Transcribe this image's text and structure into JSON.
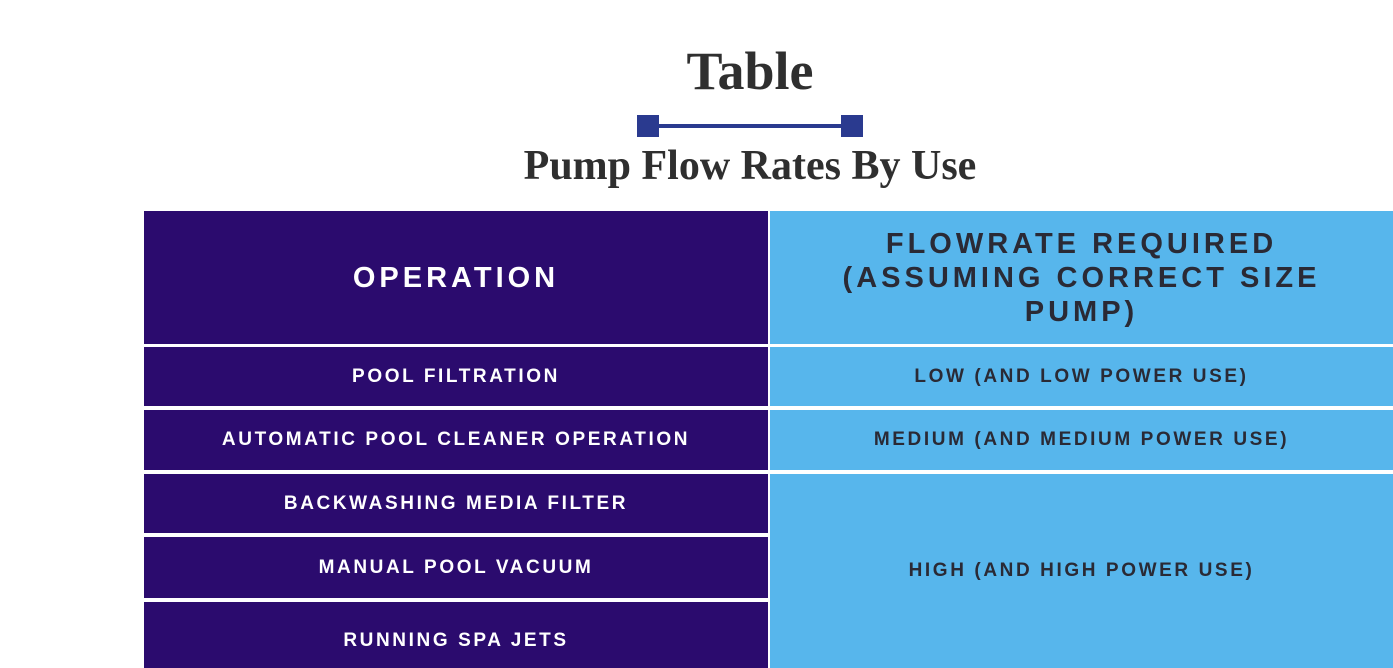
{
  "header": {
    "title": "Table",
    "subtitle": "Pump Flow Rates By Use"
  },
  "table": {
    "columns": [
      "OPERATION",
      "FLOWRATE REQUIRED (ASSUMING CORRECT SIZE PUMP)"
    ],
    "rows": [
      [
        "POOL FILTRATION",
        "LOW (AND LOW POWER USE)"
      ],
      [
        "AUTOMATIC POOL CLEANER OPERATION",
        "MEDIUM (AND MEDIUM POWER USE)"
      ],
      [
        "BACKWASHING MEDIA FILTER",
        "HIGH (AND HIGH POWER USE)"
      ],
      [
        "MANUAL POOL VACUUM"
      ],
      [
        "RUNNING SPA JETS"
      ]
    ]
  }
}
